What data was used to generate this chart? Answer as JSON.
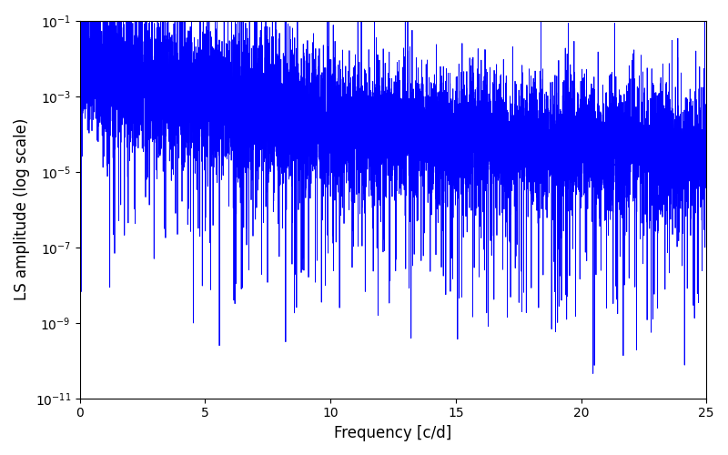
{
  "title": "",
  "xlabel": "Frequency [c/d]",
  "ylabel": "LS amplitude (log scale)",
  "xlim": [
    0,
    25
  ],
  "ylim": [
    1e-11,
    0.1
  ],
  "line_color": "#0000ff",
  "line_width": 0.6,
  "yscale": "log",
  "figsize": [
    8.0,
    5.0
  ],
  "dpi": 100,
  "seed": 12345,
  "n_points": 8000,
  "freq_max": 25.0,
  "base_amplitude": 0.003,
  "decay_power": 1.8,
  "noise_floor": 8e-07,
  "log_noise_sigma": 2.0,
  "spike_prob": 0.05,
  "spike_max_factor": 50.0,
  "dip_prob": 0.03,
  "dip_factor_min": 1e-05,
  "dip_factor_max": 0.001,
  "alias_freq1": 1.0,
  "alias_amp1": 0.005,
  "alias_freq2": 7.0,
  "alias_amp2": 0.0005
}
